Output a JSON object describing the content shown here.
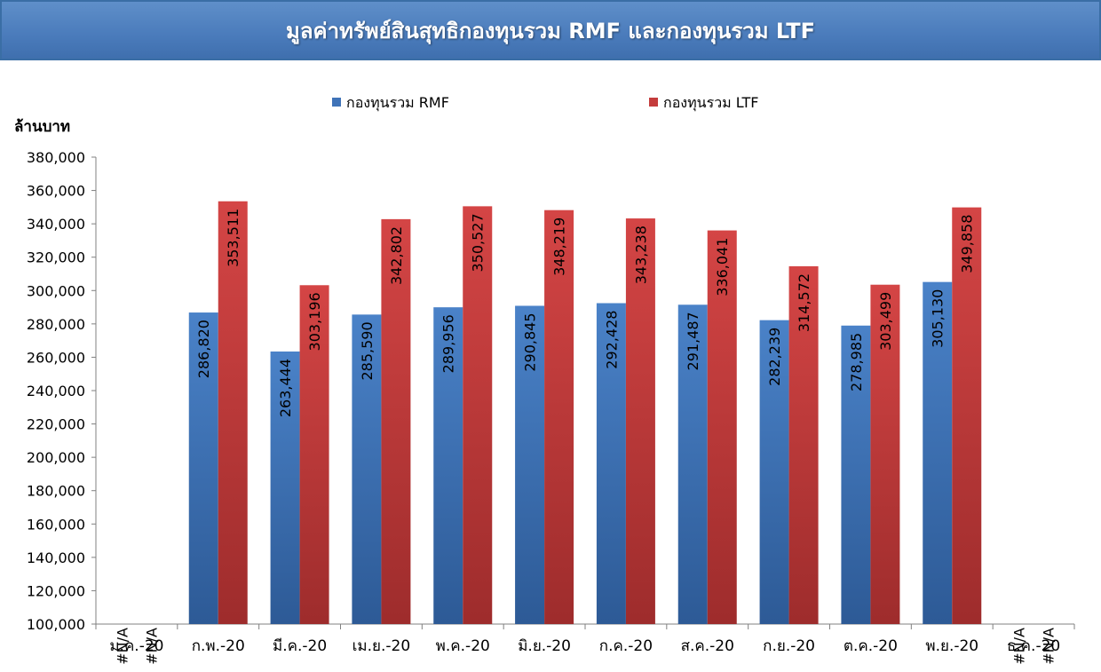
{
  "chart_data": {
    "type": "bar",
    "title": "มูลค่าทรัพย์สินสุทธิกองทุนรวม RMF  และกองทุนรวม LTF",
    "ylabel": "ล้านบาท",
    "ylim": [
      100000,
      380000
    ],
    "ytick_step": 20000,
    "ytick_labels": [
      "100,000",
      "120,000",
      "140,000",
      "160,000",
      "180,000",
      "200,000",
      "220,000",
      "240,000",
      "260,000",
      "280,000",
      "300,000",
      "320,000",
      "340,000",
      "360,000",
      "380,000"
    ],
    "grid": false,
    "legend_position": "top",
    "categories": [
      "ม.ค.-20",
      "ก.พ.-20",
      "มี.ค.-20",
      "เม.ย.-20",
      "พ.ค.-20",
      "มิ.ย.-20",
      "ก.ค.-20",
      "ส.ค.-20",
      "ก.ย.-20",
      "ต.ค.-20",
      "พ.ย.-20",
      "ธ.ค.-20"
    ],
    "series": [
      {
        "name": "กองทุนรวม RMF",
        "color": "#3f73b8",
        "values": [
          null,
          286820,
          263444,
          285590,
          289956,
          290845,
          292428,
          291487,
          282239,
          278985,
          305130,
          null
        ],
        "labels": [
          "#N/A",
          "286,820",
          "263,444",
          "285,590",
          "289,956",
          "290,845",
          "292,428",
          "291,487",
          "282,239",
          "278,985",
          "305,130",
          "#N/A"
        ]
      },
      {
        "name": "กองทุนรวม LTF",
        "color": "#c43c3c",
        "values": [
          null,
          353511,
          303196,
          342802,
          350527,
          348219,
          343238,
          336041,
          314572,
          303499,
          349858,
          null
        ],
        "labels": [
          "#N/A",
          "353,511",
          "303,196",
          "342,802",
          "350,527",
          "348,219",
          "343,238",
          "336,041",
          "314,572",
          "303,499",
          "349,858",
          "#N/A"
        ]
      }
    ]
  }
}
